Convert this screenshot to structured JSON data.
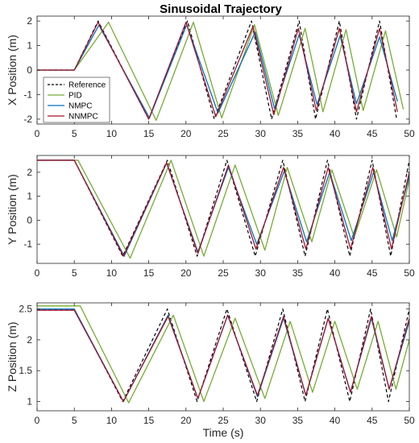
{
  "chart_data": {
    "type": "line",
    "title": "Sinusoidal Trajectory",
    "xlabel": "Time (s)",
    "xlim": [
      0,
      50
    ],
    "xticks": [
      0,
      5,
      10,
      15,
      20,
      25,
      30,
      35,
      40,
      45,
      50
    ],
    "legend": {
      "location": "left, inside top panel",
      "entries": [
        "Reference",
        "PID",
        "NMPC",
        "NNMPC"
      ]
    },
    "series_styles": [
      {
        "name": "Reference",
        "color": "#000000",
        "dash": "dashed"
      },
      {
        "name": "PID",
        "color": "#77ac30",
        "dash": "solid"
      },
      {
        "name": "NMPC",
        "color": "#0072bd",
        "dash": "solid"
      },
      {
        "name": "NNMPC",
        "color": "#a2142f",
        "dash": "solid"
      }
    ],
    "panels": [
      {
        "ylabel": "X Position (m)",
        "ylim": [
          -2.2,
          2.2
        ],
        "yticks": [
          -2,
          -1,
          0,
          1,
          2
        ],
        "model": {
          "kind": "x",
          "start": 0,
          "end": 2,
          "t0": 5,
          "t1": 8,
          "period_start": 12,
          "period_end": 4.5
        },
        "series": [
          {
            "name": "Reference",
            "x": [
              0,
              5,
              8.2,
              15,
              20.2,
              23.8,
              28.8,
              31.5,
              35.2,
              37.4,
              40.6,
              42.9,
              46.0,
              48.3
            ],
            "values": [
              0,
              0,
              2,
              -2,
              2,
              -2,
              2,
              -2,
              2,
              -2,
              2,
              -2,
              2,
              -2
            ]
          },
          {
            "name": "PID",
            "x": [
              0,
              5,
              9.6,
              16.0,
              21.0,
              24.8,
              29.2,
              32.4,
              36.0,
              38.4,
              41.5,
              43.8,
              46.8,
              49.2
            ],
            "values": [
              0,
              0,
              1.95,
              -2.05,
              1.95,
              -1.95,
              1.85,
              -1.85,
              1.7,
              -1.7,
              1.65,
              -1.65,
              1.6,
              -1.6
            ]
          },
          {
            "name": "NMPC",
            "x": [
              0,
              5,
              8.3,
              15.1,
              20.1,
              24.3,
              29.3,
              31.9,
              35.2,
              37.6,
              40.7,
              42.9,
              46.0,
              48.4
            ],
            "values": [
              0,
              0,
              1.83,
              -1.95,
              1.85,
              -1.75,
              1.55,
              -1.58,
              1.45,
              -1.4,
              1.4,
              -1.37,
              1.35,
              -1.28
            ]
          },
          {
            "name": "NNMPC",
            "x": [
              0,
              5,
              8.2,
              15.0,
              20.0,
              24.0,
              29.0,
              31.8,
              35.1,
              37.5,
              40.6,
              42.9,
              46.0,
              48.4
            ],
            "values": [
              0,
              0,
              1.95,
              -2.0,
              1.95,
              -1.9,
              1.78,
              -1.82,
              1.7,
              -1.65,
              1.7,
              -1.7,
              1.7,
              -1.7
            ]
          }
        ]
      },
      {
        "ylabel": "Y Position (m)",
        "ylim": [
          -1.8,
          2.7
        ],
        "yticks": [
          -1,
          0,
          1,
          2
        ],
        "model": {
          "kind": "y",
          "start": 2.5,
          "amp": 2.0,
          "center": 0.5,
          "t0": 5,
          "period_start": 12,
          "period_end": 4.5
        },
        "series": [
          {
            "name": "Reference",
            "x": [
              0,
              5,
              11.5,
              17.5,
              21.5,
              25.5,
              29.3,
              33.0,
              36.0,
              39.0,
              42.0,
              45.0,
              47.5,
              50.0
            ],
            "values": [
              2.5,
              2.5,
              -1.5,
              2.5,
              -1.5,
              2.5,
              -1.5,
              2.5,
              -1.5,
              2.5,
              -1.5,
              2.5,
              -1.5,
              2.5
            ]
          },
          {
            "name": "PID",
            "x": [
              0,
              5.5,
              12.5,
              18.0,
              22.4,
              26.6,
              30.6,
              33.6,
              36.9,
              39.6,
              42.6,
              45.6,
              48.3,
              50.0
            ],
            "values": [
              2.5,
              2.5,
              -1.58,
              2.5,
              -1.5,
              2.3,
              -1.25,
              2.2,
              -0.9,
              2.1,
              -0.7,
              2.1,
              -0.7,
              1.7
            ]
          },
          {
            "name": "NMPC",
            "x": [
              0,
              5,
              11.7,
              17.4,
              21.6,
              25.7,
              29.5,
              33.2,
              36.2,
              39.3,
              42.2,
              45.2,
              47.7,
              50.0
            ],
            "values": [
              2.5,
              2.5,
              -1.5,
              2.38,
              -1.32,
              2.2,
              -1.0,
              2.05,
              -0.9,
              2.0,
              -0.85,
              2.0,
              -0.85,
              1.85
            ]
          },
          {
            "name": "NNMPC",
            "x": [
              0,
              5,
              11.6,
              17.4,
              21.6,
              25.7,
              29.4,
              33.1,
              36.1,
              39.1,
              42.1,
              45.1,
              47.6,
              50.0
            ],
            "values": [
              2.5,
              2.5,
              -1.5,
              2.4,
              -1.38,
              2.3,
              -1.2,
              2.2,
              -1.2,
              2.2,
              -1.2,
              2.2,
              -1.2,
              2.0
            ]
          }
        ]
      },
      {
        "ylabel": "Z Position (m)",
        "ylim": [
          0.85,
          2.6
        ],
        "yticks": [
          1,
          1.5,
          2,
          2.5
        ],
        "model": {
          "kind": "z",
          "start": 2.5,
          "amp": 0.75,
          "center": 1.75,
          "t0": 5,
          "period_start": 12,
          "period_end": 4.5
        },
        "series": [
          {
            "name": "Reference",
            "x": [
              0,
              5,
              11.5,
              17.5,
              21.5,
              25.5,
              29.5,
              33.0,
              36.0,
              39.0,
              42.0,
              44.8,
              47.2,
              50.0
            ],
            "values": [
              2.5,
              2.5,
              1.0,
              2.5,
              1.0,
              2.5,
              1.0,
              2.5,
              1.0,
              2.5,
              1.0,
              2.5,
              1.0,
              2.5
            ]
          },
          {
            "name": "PID",
            "x": [
              0,
              5.8,
              12.3,
              18.3,
              22.4,
              26.6,
              30.6,
              34.0,
              37.0,
              40.0,
              43.0,
              45.8,
              48.2,
              50.0
            ],
            "values": [
              2.55,
              2.55,
              0.98,
              2.4,
              1.0,
              2.35,
              1.05,
              2.3,
              1.15,
              2.3,
              1.2,
              2.3,
              1.2,
              2.0
            ]
          },
          {
            "name": "NMPC",
            "x": [
              0,
              5,
              11.6,
              17.6,
              21.6,
              25.6,
              29.6,
              33.1,
              36.1,
              39.1,
              42.1,
              44.9,
              47.3,
              50.0
            ],
            "values": [
              2.5,
              2.5,
              1.0,
              2.4,
              1.05,
              2.4,
              1.08,
              2.35,
              1.1,
              2.35,
              1.15,
              2.35,
              1.2,
              2.3
            ]
          },
          {
            "name": "NNMPC",
            "x": [
              0,
              5,
              11.6,
              17.6,
              21.6,
              25.6,
              29.6,
              33.1,
              36.1,
              39.1,
              42.1,
              44.9,
              47.3,
              50.0
            ],
            "values": [
              2.48,
              2.48,
              1.0,
              2.38,
              1.05,
              2.4,
              1.1,
              2.38,
              1.1,
              2.35,
              1.15,
              2.38,
              1.2,
              2.35
            ]
          }
        ]
      }
    ]
  }
}
